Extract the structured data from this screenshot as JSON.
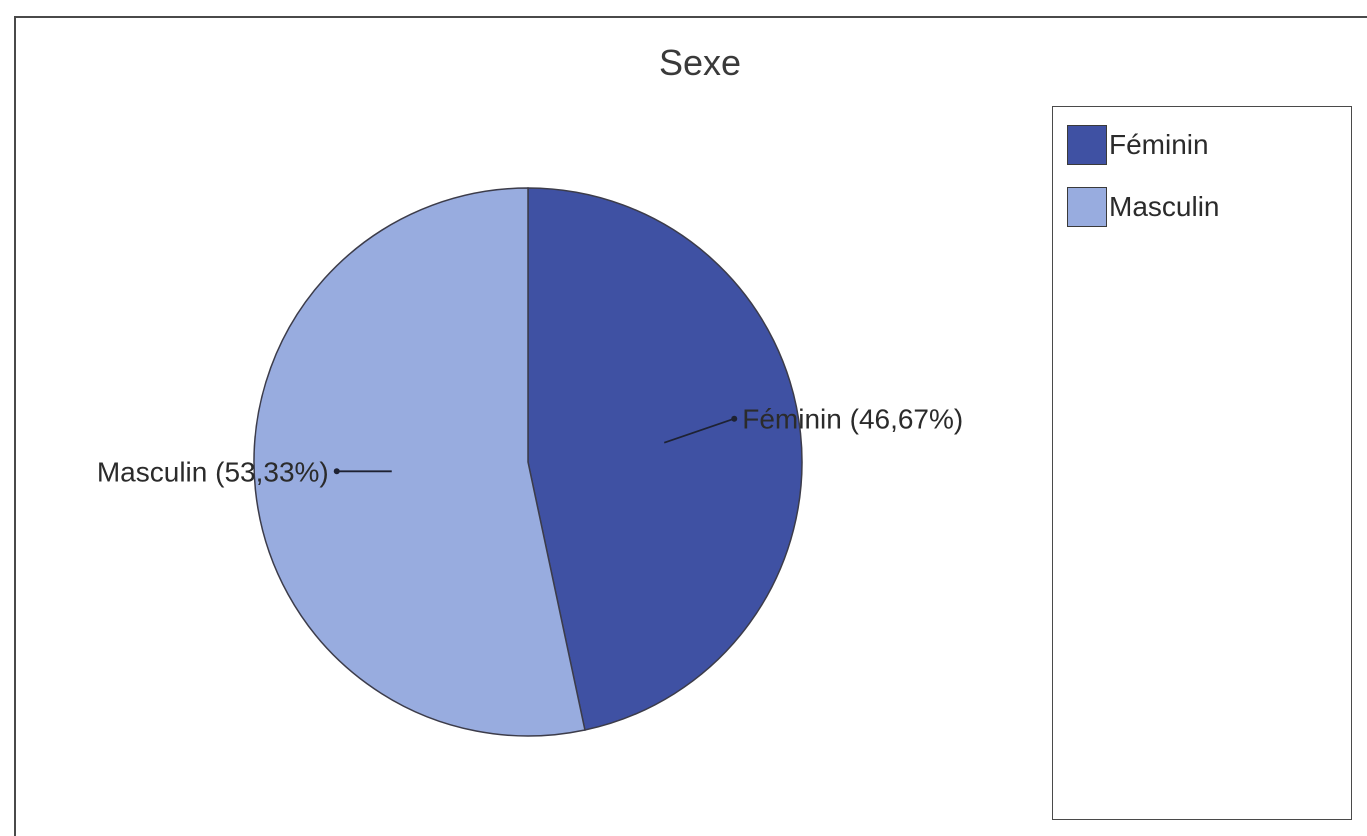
{
  "chart_data": {
    "type": "pie",
    "title": "Sexe",
    "categories": [
      "Féminin",
      "Masculin"
    ],
    "values": [
      46.67,
      53.33
    ],
    "slice_labels": [
      "Féminin (46,67%)",
      "Masculin (53,33%)"
    ],
    "colors": [
      "#3f51a3",
      "#98acdf"
    ],
    "legend": {
      "placement": "right",
      "entries": [
        "Féminin",
        "Masculin"
      ]
    }
  }
}
